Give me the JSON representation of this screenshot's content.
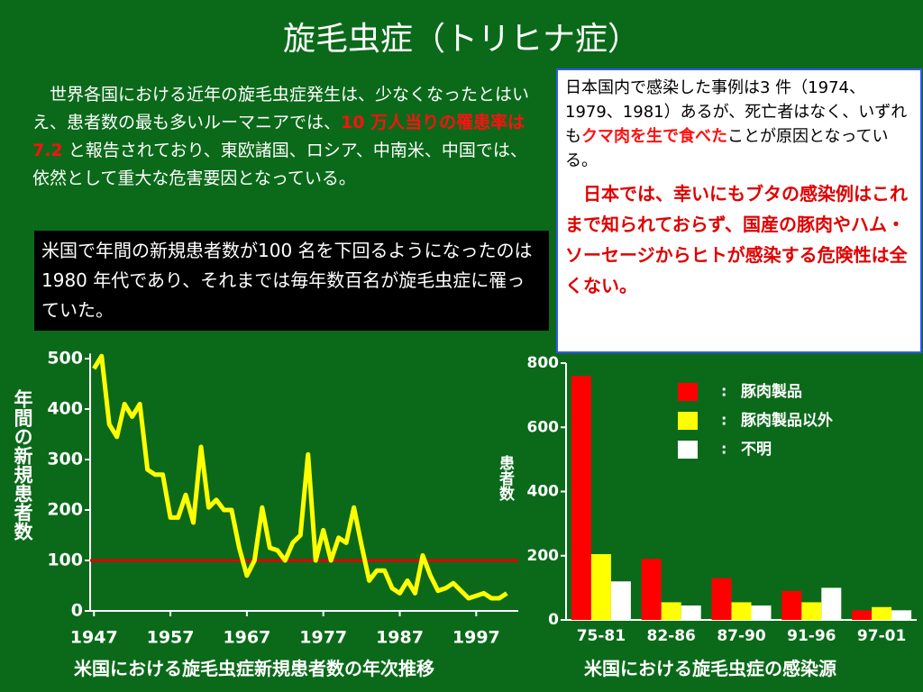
{
  "title": "旋毛虫症（トリヒナ症）",
  "intro": {
    "before": "　世界各国における近年の旋毛虫症発生は、少なくなったとはいえ、患者数の最も多いルーマニアでは、",
    "highlight": "10 万人当りの罹患率は7.2",
    "after": " と報告されており、東欧諸国、ロシア、中南米、中国では、依然として重大な危害要因となっている。"
  },
  "us_note": "米国で年間の新規患者数が100 名を下回るようになったのは1980 年代であり、それまでは毎年数百名が旋毛虫症に罹っていた。",
  "japan_note": {
    "before": "日本国内で感染した事例は3 件（1974、1979、1981）あるが、死亡者はなく、いずれも",
    "highlight": "クマ肉を生で食べた",
    "after": "ことが原因となっている。"
  },
  "japan_safety": "　日本では、幸いにもブタの感染例はこれまで知られておらず、国産の豚肉やハム・ソーセージからヒトが感染する危険性は全くない。",
  "chart_data": [
    {
      "type": "line",
      "caption": "米国における旋毛虫症新規患者数の年次推移",
      "ylabel": "年間の新規患者数",
      "color": "#ffff00",
      "x": [
        1947,
        1948,
        1949,
        1950,
        1951,
        1952,
        1953,
        1954,
        1955,
        1956,
        1957,
        1958,
        1959,
        1960,
        1961,
        1962,
        1963,
        1964,
        1965,
        1966,
        1967,
        1968,
        1969,
        1970,
        1971,
        1972,
        1973,
        1974,
        1975,
        1976,
        1977,
        1978,
        1979,
        1980,
        1981,
        1982,
        1983,
        1984,
        1985,
        1986,
        1987,
        1988,
        1989,
        1990,
        1991,
        1992,
        1993,
        1994,
        1995,
        1996,
        1997,
        1998,
        1999,
        2000,
        2001
      ],
      "values": [
        480,
        505,
        370,
        345,
        410,
        385,
        410,
        280,
        270,
        270,
        185,
        185,
        230,
        175,
        325,
        205,
        220,
        200,
        200,
        125,
        70,
        100,
        205,
        125,
        120,
        100,
        135,
        150,
        310,
        100,
        160,
        100,
        145,
        135,
        205,
        130,
        60,
        80,
        80,
        45,
        35,
        60,
        35,
        110,
        70,
        40,
        45,
        55,
        40,
        25,
        30,
        35,
        25,
        25,
        35
      ],
      "xlim": [
        1946.5,
        2002.5
      ],
      "xticks": [
        1947,
        1957,
        1967,
        1977,
        1987,
        1997
      ],
      "ylim": [
        0,
        510
      ],
      "yticks": [
        0,
        100,
        200,
        300,
        400,
        500
      ],
      "reference_line": {
        "value": 100,
        "color": "#e00000"
      }
    },
    {
      "type": "bar",
      "caption": "米国における旋毛虫症の感染源",
      "ylabel": "患者数",
      "categories": [
        "75-81",
        "82-86",
        "87-90",
        "91-96",
        "97-01"
      ],
      "series": [
        {
          "name": "豚肉製品",
          "color": "#ff0000",
          "values": [
            760,
            190,
            130,
            90,
            30
          ]
        },
        {
          "name": "豚肉製品以外",
          "color": "#ffff00",
          "values": [
            205,
            55,
            55,
            55,
            40
          ]
        },
        {
          "name": "不明",
          "color": "#ffffff",
          "values": [
            120,
            45,
            45,
            100,
            30
          ]
        }
      ],
      "ylim": [
        0,
        800
      ],
      "yticks": [
        0,
        200,
        400,
        600,
        800
      ],
      "legend": "upper right"
    }
  ]
}
